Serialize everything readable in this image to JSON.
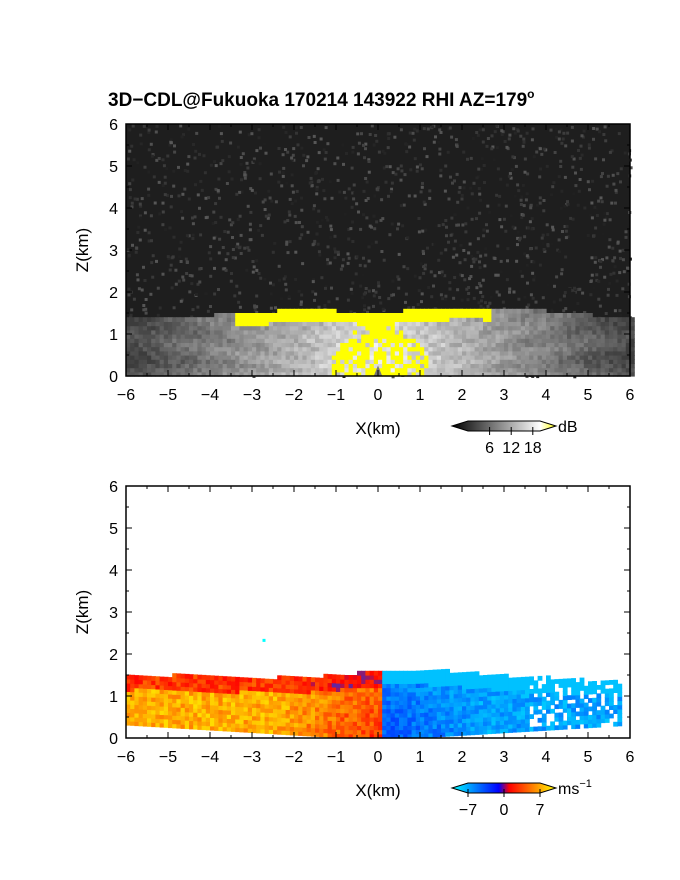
{
  "title": "3D−CDL@Fukuoka 170214 143922 RHI AZ=179",
  "title_degree": "o",
  "chart_data": [
    {
      "type": "heatmap",
      "variable": "intensity",
      "xlabel": "X(km)",
      "ylabel": "Z(km)",
      "xlim": [
        -6,
        6
      ],
      "ylim": [
        0,
        6
      ],
      "xticks": [
        "−6",
        "−5",
        "−4",
        "−3",
        "−2",
        "−1",
        "0",
        "1",
        "2",
        "3",
        "4",
        "5",
        "6"
      ],
      "yticks": [
        "0",
        "1",
        "2",
        "3",
        "4",
        "5",
        "6"
      ],
      "colorbar": {
        "unit": "dB",
        "ticks": [
          "6",
          "12",
          "18"
        ],
        "range": [
          0,
          20
        ],
        "colors": [
          "#000000",
          "#ffffff",
          "#ffff00"
        ]
      },
      "features": {
        "layer_top_km": [
          1.35,
          1.3,
          1.4,
          1.45,
          1.55,
          1.5,
          1.45,
          1.55,
          1.6,
          1.55,
          1.5,
          1.4,
          1.3
        ],
        "saturated_range_x_km": [
          -3.5,
          2.6
        ],
        "saturated_value_db": 20
      }
    },
    {
      "type": "heatmap",
      "variable": "radial_velocity",
      "xlabel": "X(km)",
      "ylabel": "Z(km)",
      "xlim": [
        -6,
        6
      ],
      "ylim": [
        0,
        6
      ],
      "xticks": [
        "−6",
        "−5",
        "−4",
        "−3",
        "−2",
        "−1",
        "0",
        "1",
        "2",
        "3",
        "4",
        "5",
        "6"
      ],
      "yticks": [
        "0",
        "1",
        "2",
        "3",
        "4",
        "5",
        "6"
      ],
      "colorbar": {
        "unit": "ms",
        "unit_exponent": "−1",
        "ticks": [
          "−7",
          "0",
          "7"
        ],
        "range": [
          -7,
          7
        ],
        "colors": [
          "#00ffff",
          "#0000ff",
          "#ff0000",
          "#ffff00"
        ]
      },
      "features": {
        "layer_top_km": [
          1.45,
          1.45,
          1.4,
          1.4,
          1.4,
          1.5,
          1.6,
          1.55,
          1.45,
          1.4,
          1.35,
          1.3
        ],
        "echo_x_range_km": [
          -6,
          5.7
        ],
        "negative_x_velocity_ms": 5,
        "positive_x_velocity_ms": -4
      }
    }
  ]
}
